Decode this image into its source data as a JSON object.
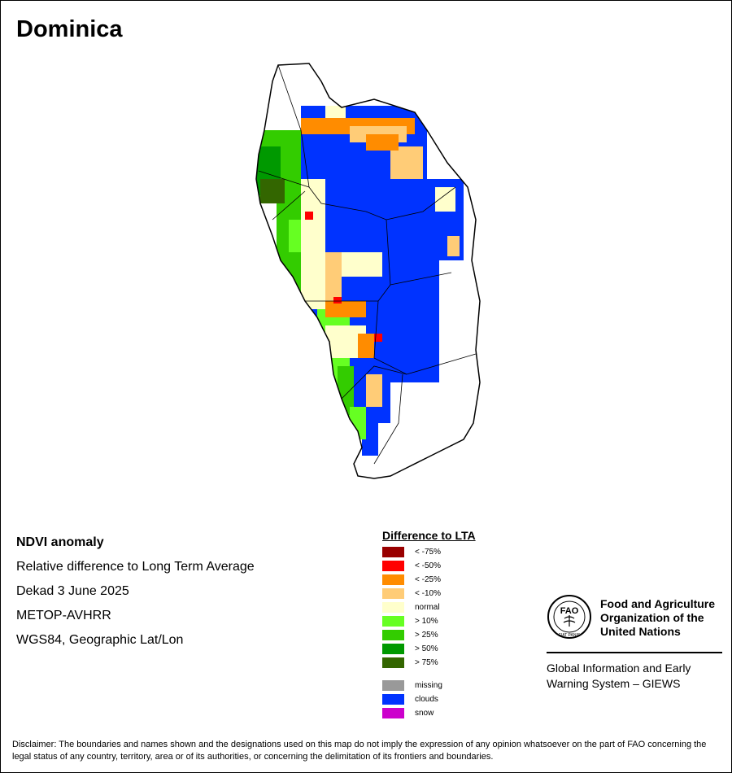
{
  "title": "Dominica",
  "info": {
    "product": "NDVI anomaly",
    "description": "Relative difference to Long Term Average",
    "period": "Dekad 3 June 2025",
    "sensor": "METOP-AVHRR",
    "projection": "WGS84, Geographic Lat/Lon"
  },
  "legend": {
    "title": "Difference to LTA",
    "classes": [
      {
        "label": "< -75%",
        "color": "#990000"
      },
      {
        "label": "< -50%",
        "color": "#ff0000"
      },
      {
        "label": "< -25%",
        "color": "#ff8c00"
      },
      {
        "label": "< -10%",
        "color": "#ffcc77"
      },
      {
        "label": "normal",
        "color": "#ffffcc"
      },
      {
        "label": "> 10%",
        "color": "#66ff22"
      },
      {
        "label": "> 25%",
        "color": "#33cc00"
      },
      {
        "label": "> 50%",
        "color": "#009900"
      },
      {
        "label": "> 75%",
        "color": "#336600"
      }
    ],
    "extra": [
      {
        "label": "missing",
        "color": "#999999"
      },
      {
        "label": "clouds",
        "color": "#0033ff"
      },
      {
        "label": "snow",
        "color": "#cc00cc"
      }
    ]
  },
  "fao": {
    "logo_text": "FAO",
    "logo_motto": "FIAT PANIS",
    "name_line1": "Food and Agriculture",
    "name_line2": "Organization of the",
    "name_line3": "United Nations",
    "giews_line1": "Global Information and Early",
    "giews_line2": "Warning System – GIEWS"
  },
  "disclaimer": "Disclaimer: The boundaries and names shown and the designations used on this map do not imply the expression of any opinion whatsoever on the part of FAO concerning the legal status of any country, territory, area or of its authorities, or concerning the delimitation of its frontiers and boundaries."
}
